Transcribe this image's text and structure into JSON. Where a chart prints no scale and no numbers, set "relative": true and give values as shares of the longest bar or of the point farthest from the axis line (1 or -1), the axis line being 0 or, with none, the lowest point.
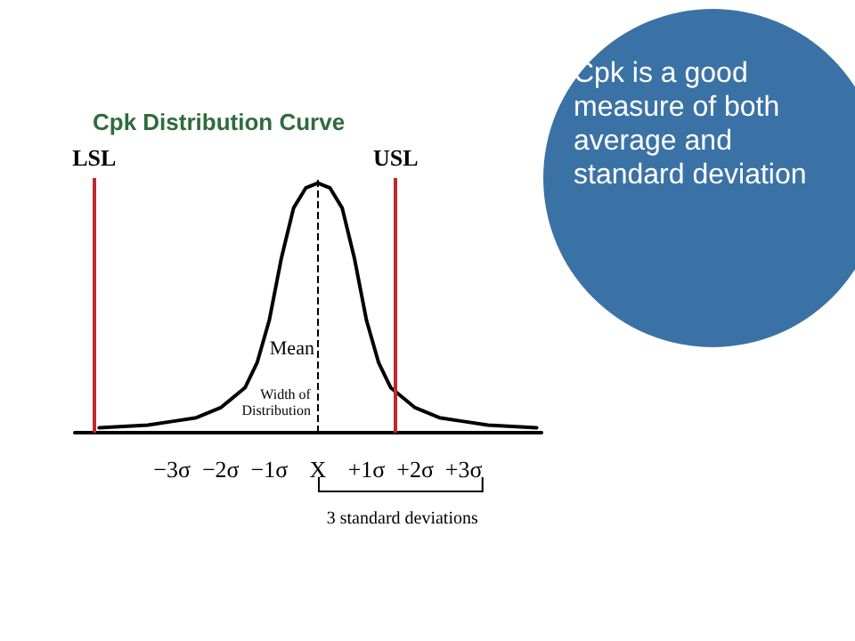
{
  "chart_data": {
    "type": "line",
    "title": "Cpk Distribution Curve",
    "relative": true,
    "color": "#000000",
    "marker": "none",
    "line_style": "solid",
    "grid": false,
    "x": [
      -4.5,
      -4,
      -3.5,
      -3,
      -2.5,
      -2,
      -1.5,
      -1.25,
      -1,
      -0.75,
      -0.5,
      -0.25,
      0,
      0.25,
      0.5,
      0.75,
      1,
      1.25,
      1.5,
      2,
      2.5,
      3,
      3.5,
      4,
      4.5
    ],
    "values": [
      0.02,
      0.025,
      0.03,
      0.045,
      0.06,
      0.1,
      0.18,
      0.28,
      0.45,
      0.7,
      0.9,
      0.98,
      1,
      0.98,
      0.9,
      0.7,
      0.45,
      0.28,
      0.18,
      0.1,
      0.06,
      0.045,
      0.03,
      0.025,
      0.02
    ],
    "xlim": [
      -5,
      4.6
    ],
    "xticks": [
      {
        "value": -3,
        "label": "−3σ"
      },
      {
        "value": -2,
        "label": "−2σ"
      },
      {
        "value": -1,
        "label": "−1σ"
      },
      {
        "value": 0,
        "label": "X"
      },
      {
        "value": 1,
        "label": "+1σ"
      },
      {
        "value": 2,
        "label": "+2σ"
      },
      {
        "value": 3,
        "label": "+3σ"
      }
    ],
    "ref_lines": [
      {
        "axis": "x",
        "value": -4.6,
        "label": "LSL",
        "color": "#c0282d",
        "line_style": "solid"
      },
      {
        "axis": "x",
        "value": 1.6,
        "label": "USL",
        "color": "#c0282d",
        "line_style": "solid"
      },
      {
        "axis": "x",
        "value": 0,
        "label": null,
        "color": "#000000",
        "line_style": "dashed"
      }
    ],
    "annotations": [
      "Mean",
      "Width of Distribution",
      "3 standard deviations",
      "Cpk is a good measure of both average and standard deviation"
    ]
  }
}
